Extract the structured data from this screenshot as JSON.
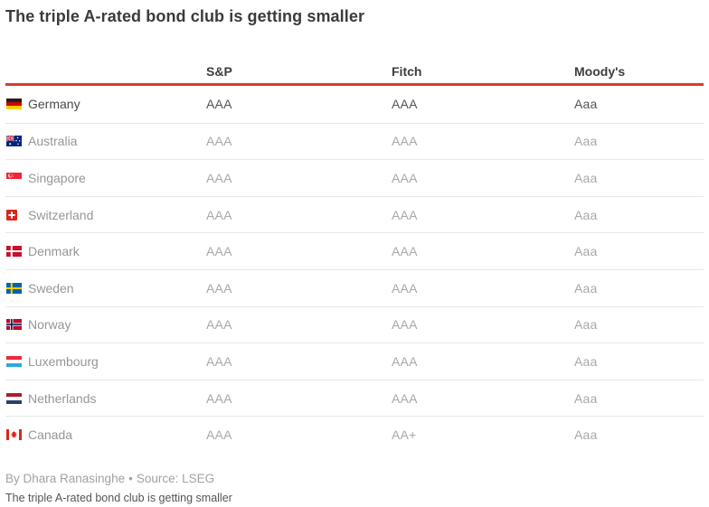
{
  "title": "The triple A-rated bond club is getting smaller",
  "colors": {
    "accent_red": "#dd3a2d",
    "row_separator": "#e8e8e8",
    "highlight_text": "#4a4a4a",
    "muted_text": "#a8a8a8"
  },
  "chart_data": {
    "type": "table",
    "title": "The triple A-rated bond club is getting smaller",
    "columns": [
      "S&P",
      "Fitch",
      "Moody's"
    ],
    "rows": [
      {
        "country": "Germany",
        "flag": "germany",
        "ratings": [
          "AAA",
          "AAA",
          "Aaa"
        ],
        "highlight": true
      },
      {
        "country": "Australia",
        "flag": "australia",
        "ratings": [
          "AAA",
          "AAA",
          "Aaa"
        ],
        "highlight": false
      },
      {
        "country": "Singapore",
        "flag": "singapore",
        "ratings": [
          "AAA",
          "AAA",
          "Aaa"
        ],
        "highlight": false
      },
      {
        "country": "Switzerland",
        "flag": "switzerland",
        "ratings": [
          "AAA",
          "AAA",
          "Aaa"
        ],
        "highlight": false
      },
      {
        "country": "Denmark",
        "flag": "denmark",
        "ratings": [
          "AAA",
          "AAA",
          "Aaa"
        ],
        "highlight": false
      },
      {
        "country": "Sweden",
        "flag": "sweden",
        "ratings": [
          "AAA",
          "AAA",
          "Aaa"
        ],
        "highlight": false
      },
      {
        "country": "Norway",
        "flag": "norway",
        "ratings": [
          "AAA",
          "AAA",
          "Aaa"
        ],
        "highlight": false
      },
      {
        "country": "Luxembourg",
        "flag": "luxembourg",
        "ratings": [
          "AAA",
          "AAA",
          "Aaa"
        ],
        "highlight": false
      },
      {
        "country": "Netherlands",
        "flag": "netherlands",
        "ratings": [
          "AAA",
          "AAA",
          "Aaa"
        ],
        "highlight": false
      },
      {
        "country": "Canada",
        "flag": "canada",
        "ratings": [
          "AAA",
          "AA+",
          "Aaa"
        ],
        "highlight": false
      }
    ]
  },
  "footer": {
    "byline": "By Dhara Ranasinghe",
    "separator": "•",
    "source": "Source: LSEG",
    "caption": "The triple A-rated bond club is getting smaller"
  }
}
